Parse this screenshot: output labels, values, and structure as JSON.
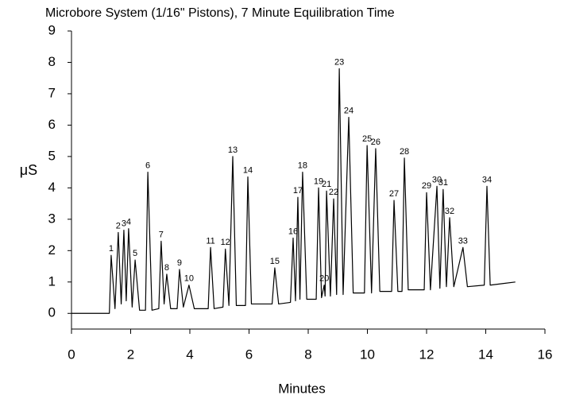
{
  "chart_data": {
    "type": "line",
    "title": "Microbore System (1/16\" Pistons), 7 Minute Equilibration Time",
    "x_label": "Minutes",
    "y_label": "μS",
    "color": "#000000",
    "xlim": [
      0,
      16
    ],
    "xticks": [
      0,
      2,
      4,
      6,
      8,
      10,
      12,
      14,
      16
    ],
    "ylim": [
      -0.5,
      9
    ],
    "yticks": [
      0,
      1,
      2,
      3,
      4,
      5,
      6,
      7,
      8,
      9
    ],
    "x": [
      0.0,
      1.28,
      1.34,
      1.47,
      1.58,
      1.68,
      1.77,
      1.85,
      1.93,
      2.05,
      2.15,
      2.3,
      2.5,
      2.58,
      2.72,
      2.95,
      3.03,
      3.13,
      3.22,
      3.35,
      3.57,
      3.65,
      3.78,
      3.97,
      4.15,
      4.62,
      4.7,
      4.82,
      5.12,
      5.2,
      5.32,
      5.45,
      5.57,
      5.88,
      5.96,
      6.08,
      6.78,
      6.87,
      7.0,
      7.4,
      7.49,
      7.57,
      7.65,
      7.72,
      7.81,
      7.95,
      8.27,
      8.35,
      8.45,
      8.54,
      8.57,
      8.62,
      8.75,
      8.86,
      8.96,
      9.05,
      9.18,
      9.37,
      9.52,
      9.9,
      9.99,
      10.14,
      10.28,
      10.42,
      10.82,
      10.9,
      11.03,
      11.17,
      11.25,
      11.38,
      11.92,
      12.0,
      12.13,
      12.35,
      12.45,
      12.56,
      12.67,
      12.78,
      12.92,
      13.23,
      13.38,
      13.95,
      14.04,
      14.15,
      15.0
    ],
    "values": [
      0.0,
      0.0,
      1.85,
      0.15,
      2.58,
      0.3,
      2.65,
      0.4,
      2.7,
      0.2,
      1.7,
      0.1,
      0.1,
      4.5,
      0.1,
      0.15,
      2.3,
      0.3,
      1.25,
      0.15,
      0.15,
      1.4,
      0.2,
      0.9,
      0.15,
      0.15,
      2.1,
      0.15,
      0.2,
      2.05,
      0.25,
      5.0,
      0.25,
      0.25,
      4.35,
      0.3,
      0.3,
      1.45,
      0.3,
      0.35,
      2.4,
      0.4,
      3.7,
      0.45,
      4.5,
      0.45,
      0.45,
      4.0,
      0.5,
      0.9,
      0.55,
      3.9,
      0.55,
      3.65,
      0.6,
      7.8,
      0.6,
      6.25,
      0.65,
      0.65,
      5.35,
      0.65,
      5.25,
      0.7,
      0.7,
      3.6,
      0.7,
      0.7,
      4.95,
      0.75,
      0.75,
      3.85,
      0.75,
      4.05,
      0.8,
      3.95,
      0.85,
      3.05,
      0.85,
      2.1,
      0.85,
      0.9,
      4.05,
      0.9,
      1.0
    ],
    "labels": [
      null,
      null,
      "1",
      null,
      "2",
      null,
      "3",
      null,
      "4",
      null,
      "5",
      null,
      null,
      "6",
      null,
      null,
      "7",
      null,
      "8",
      null,
      null,
      "9",
      null,
      "10",
      null,
      null,
      "11",
      null,
      null,
      "12",
      null,
      "13",
      null,
      null,
      "14",
      null,
      null,
      "15",
      null,
      null,
      "16",
      null,
      "17",
      null,
      "18",
      null,
      null,
      "19",
      null,
      "20",
      null,
      "21",
      null,
      "22",
      null,
      "23",
      null,
      "24",
      null,
      null,
      "25",
      null,
      "26",
      null,
      null,
      "27",
      null,
      null,
      "28",
      null,
      null,
      "29",
      null,
      "30",
      null,
      "31",
      null,
      "32",
      null,
      "33",
      null,
      null,
      "34",
      null,
      null
    ]
  }
}
